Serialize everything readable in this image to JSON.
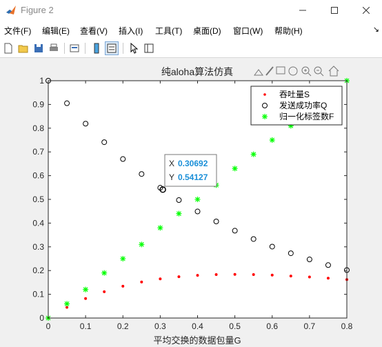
{
  "window": {
    "title": "Figure 2"
  },
  "menu": [
    {
      "label": "文件(F)"
    },
    {
      "label": "编辑(E)"
    },
    {
      "label": "查看(V)"
    },
    {
      "label": "插入(I)"
    },
    {
      "label": "工具(T)"
    },
    {
      "label": "桌面(D)"
    },
    {
      "label": "窗口(W)"
    },
    {
      "label": "帮助(H)"
    }
  ],
  "toolbar": [
    "new-figure-icon",
    "open-icon",
    "save-icon",
    "print-icon",
    "link-icon",
    "colorbar-icon",
    "legend-icon",
    "pointer-icon",
    "property-inspector-icon"
  ],
  "axes_toolbar": [
    "export-icon",
    "brush-icon",
    "datatip-icon",
    "pan-icon",
    "zoom-in-icon",
    "zoom-out-icon",
    "home-icon"
  ],
  "colors": {
    "throughput": "#ff0000",
    "success": "#000000",
    "tags": "#00ff00",
    "datatip_value": "#1a8fd8"
  },
  "chart_data": {
    "type": "scatter",
    "title": "纯aloha算法仿真",
    "xlabel": "平均交换的数据包量G",
    "ylabel": "",
    "xlim": [
      0,
      0.8
    ],
    "ylim": [
      0,
      1
    ],
    "xticks": [
      "0",
      "0.1",
      "0.2",
      "0.3",
      "0.4",
      "0.5",
      "0.6",
      "0.7",
      "0.8"
    ],
    "yticks": [
      "0",
      "0.1",
      "0.2",
      "0.3",
      "0.4",
      "0.5",
      "0.6",
      "0.7",
      "0.8",
      "0.9",
      "1"
    ],
    "grid": false,
    "legend_position": "top-right",
    "x": [
      0,
      0.05,
      0.1,
      0.15,
      0.2,
      0.25,
      0.3,
      0.35,
      0.4,
      0.45,
      0.5,
      0.55,
      0.6,
      0.65,
      0.7,
      0.75,
      0.8
    ],
    "series": [
      {
        "name": "吞吐量S",
        "marker": ".",
        "color": "#ff0000",
        "values": [
          0,
          0.045,
          0.082,
          0.111,
          0.134,
          0.152,
          0.165,
          0.174,
          0.18,
          0.183,
          0.184,
          0.183,
          0.181,
          0.177,
          0.173,
          0.168,
          0.162
        ]
      },
      {
        "name": "发送成功率Q",
        "marker": "o",
        "color": "#000000",
        "values": [
          1,
          0.905,
          0.819,
          0.741,
          0.67,
          0.607,
          0.549,
          0.497,
          0.449,
          0.407,
          0.368,
          0.333,
          0.301,
          0.273,
          0.247,
          0.223,
          0.202
        ]
      },
      {
        "name": "归一化标签数F",
        "marker": "*",
        "color": "#00ff00",
        "values": [
          0,
          0.06,
          0.12,
          0.19,
          0.25,
          0.31,
          0.38,
          0.44,
          0.5,
          0.56,
          0.63,
          0.69,
          0.75,
          0.81,
          0.88,
          0.94,
          1.0
        ]
      }
    ],
    "datatip": {
      "x_label": "X",
      "x_value": "0.30692",
      "y_label": "Y",
      "y_value": "0.54127"
    }
  }
}
